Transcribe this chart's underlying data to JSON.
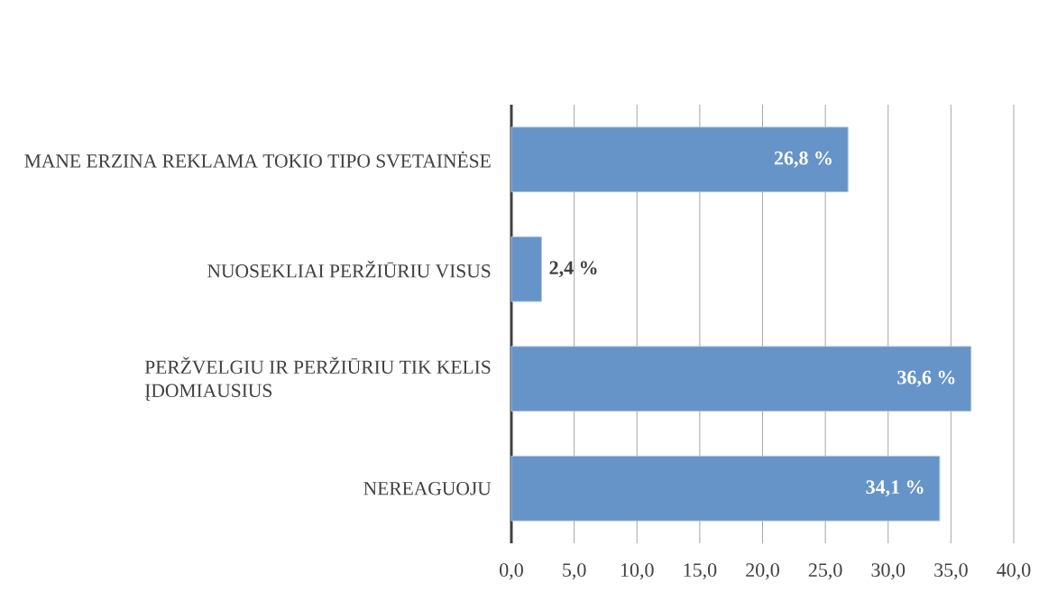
{
  "chart_data": {
    "type": "bar",
    "orientation": "horizontal",
    "categories": [
      "MANE ERZINA REKLAMA TOKIO TIPO SVETAINĖSE",
      "NUOSEKLIAI PERŽIŪRIU VISUS",
      "PERŽVELGIU IR PERŽIŪRIU TIK KELIS ĮDOMIAUSIUS",
      "NEREAGUOJU"
    ],
    "values": [
      26.8,
      2.4,
      36.6,
      34.1
    ],
    "value_labels": [
      "26,8 %",
      "2,4 %",
      "36,6 %",
      "34,1 %"
    ],
    "color": "#6694c8",
    "xlim": [
      0,
      40
    ],
    "xticks": [
      {
        "value": 0,
        "label": "0,0"
      },
      {
        "value": 5,
        "label": "5,0"
      },
      {
        "value": 10,
        "label": "10,0"
      },
      {
        "value": 15,
        "label": "15,0"
      },
      {
        "value": 20,
        "label": "20,0"
      },
      {
        "value": 25,
        "label": "25,0"
      },
      {
        "value": 30,
        "label": "30,0"
      },
      {
        "value": 35,
        "label": "35,0"
      },
      {
        "value": 40,
        "label": "40,0"
      }
    ],
    "grid": "x"
  }
}
